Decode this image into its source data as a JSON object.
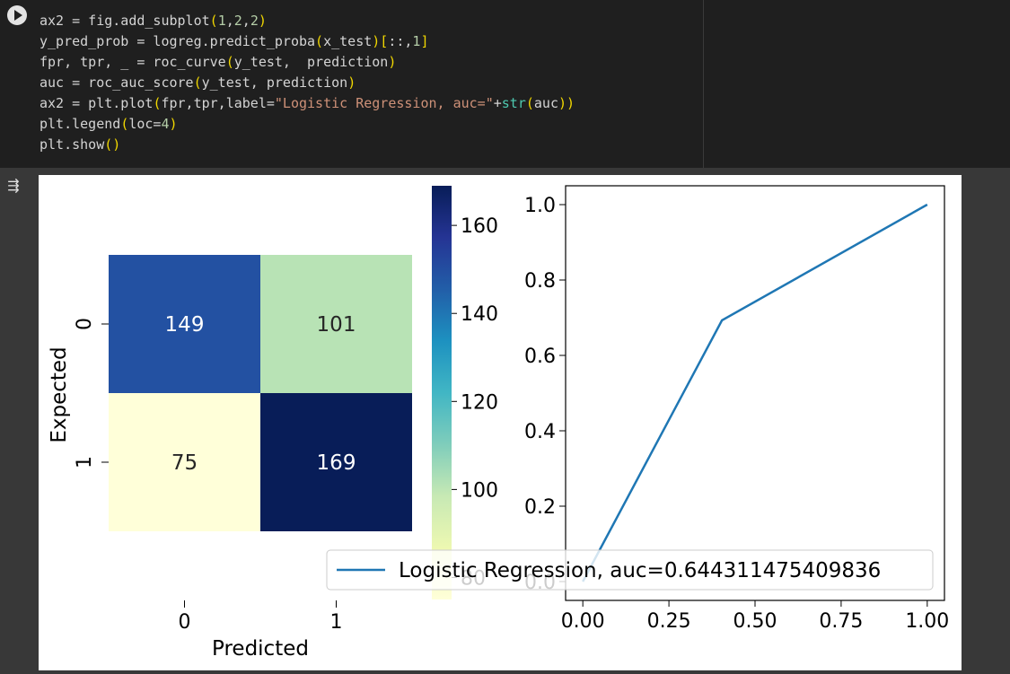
{
  "code_cell": {
    "lines": [
      "ax2 = fig.add_subplot(1,2,2)",
      "y_pred_prob = logreg.predict_proba(x_test)[::,1]",
      "fpr, tpr, _ = roc_curve(y_test,  prediction)",
      "auc = roc_auc_score(y_test, prediction)",
      "ax2 = plt.plot(fpr,tpr,label=\"Logistic Regression, auc=\"+str(auc))",
      "plt.legend(loc=4)",
      "plt.show()"
    ],
    "run_icon": "play-icon",
    "output_icon": "output-toggle-icon"
  },
  "chart_data": [
    {
      "type": "heatmap",
      "xlabel": "Predicted",
      "ylabel": "Expected",
      "x_ticks": [
        "0",
        "1"
      ],
      "y_ticks": [
        "0",
        "1"
      ],
      "values": [
        [
          149,
          101
        ],
        [
          75,
          169
        ]
      ],
      "colormap": "YlGnBu",
      "colorbar": {
        "ticks": [
          "80",
          "100",
          "120",
          "140",
          "160"
        ],
        "range": [
          75,
          169
        ]
      }
    },
    {
      "type": "line",
      "x": [
        0.0,
        0.404,
        1.0
      ],
      "y": [
        0.0,
        0.693,
        1.0
      ],
      "x_ticks": [
        "0.00",
        "0.25",
        "0.50",
        "0.75",
        "1.00"
      ],
      "y_ticks": [
        "0.0",
        "0.2",
        "0.4",
        "0.6",
        "0.8",
        "1.0"
      ],
      "xlim": [
        -0.05,
        1.05
      ],
      "ylim": [
        -0.05,
        1.05
      ],
      "series": [
        {
          "name": "Logistic Regression, auc=0.644311475409836",
          "color": "#1f77b4"
        }
      ],
      "legend": "lower right"
    }
  ]
}
